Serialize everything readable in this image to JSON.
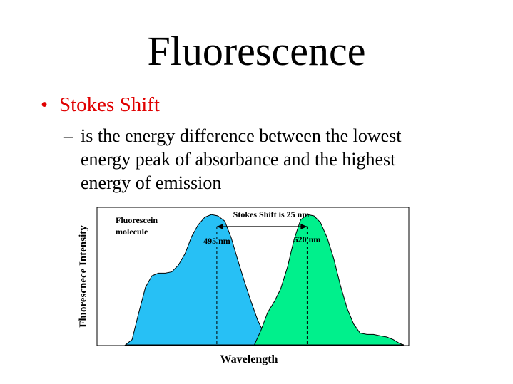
{
  "slide": {
    "title": "Fluorescence",
    "bullet": "Stokes Shift",
    "bullet_marker": "•",
    "sub_marker": "–",
    "sub_text": "is the energy difference between the lowest energy peak of absorbance and the highest energy of emission"
  },
  "colors": {
    "bullet_text": "#e00000",
    "absorbance_fill": "#27c0f5",
    "emission_fill": "#00f08c",
    "outline": "#000000"
  },
  "chart_data": {
    "type": "area",
    "title": "",
    "xlabel": "Wavelength",
    "ylabel": "Fluorescnece Intensity",
    "x_ticks": "none",
    "y_ticks": "none",
    "grid": false,
    "legend": "none",
    "units": "relative intensity (0–1); x in nm interpolated from the 495 nm and 520 nm peak labels",
    "annotations": {
      "molecule": "Fluorescein molecule",
      "stokes_shift": "Stokes Shift is 25 nm",
      "absorbance_peak_label": "495 nm",
      "emission_peak_label": "520 nm"
    },
    "peaks": {
      "absorbance": 495,
      "emission": 520
    },
    "xlim": [
      462,
      548
    ],
    "ylim": [
      0,
      1.05
    ],
    "series": [
      {
        "x": [
          469.7,
          471.5,
          473.3,
          475.2,
          477.0,
          478.8,
          480.7,
          482.5,
          484.3,
          486.2,
          488.0,
          489.8,
          491.7,
          493.5,
          495.3,
          497.2,
          499.0,
          500.8,
          502.7,
          504.5,
          506.3,
          508.2,
          510.0
        ],
        "y": [
          0.0,
          0.04,
          0.24,
          0.44,
          0.53,
          0.55,
          0.55,
          0.56,
          0.61,
          0.7,
          0.83,
          0.92,
          0.98,
          1.0,
          0.99,
          0.95,
          0.82,
          0.65,
          0.48,
          0.33,
          0.19,
          0.08,
          0.0
        ]
      },
      {
        "x": [
          505.4,
          507.2,
          509.1,
          510.9,
          512.7,
          514.6,
          516.4,
          518.2,
          520.1,
          521.9,
          523.7,
          525.6,
          527.4,
          529.2,
          531.1,
          532.9,
          534.7,
          536.6,
          538.4,
          540.2,
          542.1,
          543.9,
          545.7,
          546.8
        ],
        "y": [
          0.0,
          0.11,
          0.25,
          0.33,
          0.43,
          0.6,
          0.81,
          0.96,
          1.0,
          0.99,
          0.94,
          0.82,
          0.66,
          0.46,
          0.28,
          0.16,
          0.09,
          0.08,
          0.08,
          0.07,
          0.06,
          0.04,
          0.01,
          0.0
        ]
      }
    ]
  }
}
